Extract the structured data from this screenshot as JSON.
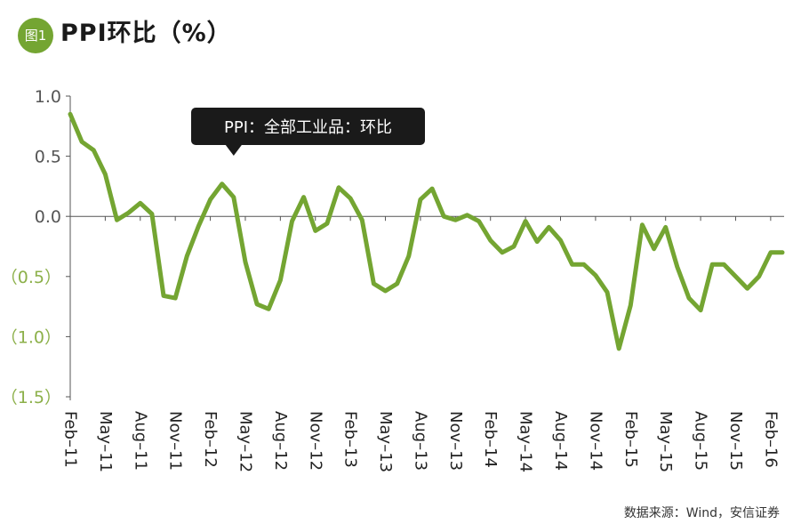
{
  "header": {
    "badge": "图1",
    "title": "PPI环比（%）"
  },
  "footer": {
    "source": "数据来源：Wind，安信证券"
  },
  "colors": {
    "line": "#74a532",
    "badge": "#74a532",
    "negative_tick": "#8cb04a",
    "axis": "#555555"
  },
  "chart_data": {
    "type": "line",
    "title": "PPI环比（%）",
    "xlabel": "",
    "ylabel": "",
    "ylim": [
      -1.5,
      1.0
    ],
    "grid": false,
    "y_ticks": [
      {
        "value": 1.0,
        "label": "1.0"
      },
      {
        "value": 0.5,
        "label": "0.5"
      },
      {
        "value": 0.0,
        "label": "0.0"
      },
      {
        "value": -0.5,
        "label": "（0.5）"
      },
      {
        "value": -1.0,
        "label": "（1.0）"
      },
      {
        "value": -1.5,
        "label": "（1.5）"
      }
    ],
    "x_ticks": [
      "Feb–11",
      "May–11",
      "Aug–11",
      "Nov–11",
      "Feb–12",
      "May–12",
      "Aug–12",
      "Nov–12",
      "Feb–13",
      "May–13",
      "Aug–13",
      "Nov–13",
      "Feb–14",
      "May–14",
      "Aug–14",
      "Nov–14",
      "Feb–15",
      "May–15",
      "Aug–15",
      "Nov–15",
      "Feb–16"
    ],
    "legend": {
      "label": "PPI：全部工业品：环比",
      "placement": "top-center",
      "attached_month": "Apr–12"
    },
    "series": [
      {
        "name": "PPI：全部工业品：环比",
        "x": [
          "2011-02",
          "2011-03",
          "2011-04",
          "2011-05",
          "2011-06",
          "2011-07",
          "2011-08",
          "2011-09",
          "2011-10",
          "2011-11",
          "2011-12",
          "2012-01",
          "2012-02",
          "2012-03",
          "2012-04",
          "2012-05",
          "2012-06",
          "2012-07",
          "2012-08",
          "2012-09",
          "2012-10",
          "2012-11",
          "2012-12",
          "2013-01",
          "2013-02",
          "2013-03",
          "2013-04",
          "2013-05",
          "2013-06",
          "2013-07",
          "2013-08",
          "2013-09",
          "2013-10",
          "2013-11",
          "2013-12",
          "2014-01",
          "2014-02",
          "2014-03",
          "2014-04",
          "2014-05",
          "2014-06",
          "2014-07",
          "2014-08",
          "2014-09",
          "2014-10",
          "2014-11",
          "2014-12",
          "2015-01",
          "2015-02",
          "2015-03",
          "2015-04",
          "2015-05",
          "2015-06",
          "2015-07",
          "2015-08",
          "2015-09",
          "2015-10",
          "2015-11",
          "2015-12",
          "2016-01",
          "2016-02",
          "2016-03"
        ],
        "values": [
          0.85,
          0.62,
          0.55,
          0.35,
          -0.03,
          0.03,
          0.11,
          0.02,
          -0.66,
          -0.68,
          -0.33,
          -0.08,
          0.14,
          0.27,
          0.16,
          -0.38,
          -0.73,
          -0.77,
          -0.53,
          -0.04,
          0.16,
          -0.12,
          -0.06,
          0.24,
          0.15,
          -0.03,
          -0.56,
          -0.62,
          -0.56,
          -0.33,
          0.14,
          0.23,
          0.0,
          -0.03,
          0.01,
          -0.04,
          -0.2,
          -0.3,
          -0.25,
          -0.04,
          -0.21,
          -0.09,
          -0.2,
          -0.4,
          -0.4,
          -0.49,
          -0.63,
          -1.1,
          -0.74,
          -0.07,
          -0.27,
          -0.09,
          -0.42,
          -0.68,
          -0.78,
          -0.4,
          -0.4,
          -0.5,
          -0.6,
          -0.5,
          -0.3,
          -0.3
        ]
      }
    ]
  }
}
